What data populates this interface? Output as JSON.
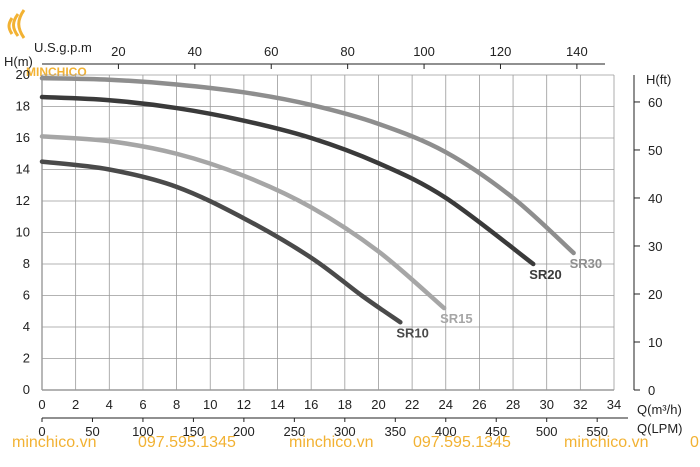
{
  "logo": {
    "text": "MINCHICO"
  },
  "footer": {
    "items": [
      "minchico.vn",
      "097.595.1345",
      "minchico.vn",
      "097.595.1345",
      "minchico.vn",
      "0"
    ]
  },
  "chart_data": {
    "type": "line",
    "left_axis_label": "H(m)",
    "right_axis_label": "H(ft)",
    "top_axis_label": "U.S.g.p.m",
    "bottom_axis_label_1": "Q(m³/h)",
    "bottom_axis_label_2": "Q(LPM)",
    "x_range": [
      0,
      34
    ],
    "y_range": [
      0,
      20
    ],
    "x_ticks": [
      "0",
      "2",
      "4",
      "6",
      "8",
      "10",
      "12",
      "14",
      "16",
      "18",
      "20",
      "22",
      "24",
      "26",
      "28",
      "30",
      "32",
      "34"
    ],
    "y_ticks": [
      "0",
      "2",
      "4",
      "6",
      "8",
      "10",
      "12",
      "14",
      "16",
      "18",
      "20"
    ],
    "lpm_ticks": [
      "0",
      "50",
      "100",
      "150",
      "200",
      "250",
      "300",
      "350",
      "400",
      "450",
      "500",
      "550"
    ],
    "usgpm_ticks": [
      "20",
      "40",
      "60",
      "80",
      "100",
      "120",
      "140"
    ],
    "ft_ticks": [
      "0",
      "10",
      "20",
      "30",
      "40",
      "50",
      "60"
    ],
    "grid": true,
    "series": [
      {
        "name": "SR10",
        "color": "#4a4a4a",
        "points": [
          [
            0,
            14.5
          ],
          [
            4,
            14.0
          ],
          [
            8,
            12.9
          ],
          [
            12,
            10.9
          ],
          [
            16,
            8.4
          ],
          [
            19,
            6.0
          ],
          [
            21.3,
            4.3
          ]
        ]
      },
      {
        "name": "SR15",
        "color": "#a6a6a6",
        "points": [
          [
            0,
            16.1
          ],
          [
            4,
            15.8
          ],
          [
            8,
            15.0
          ],
          [
            12,
            13.6
          ],
          [
            16,
            11.6
          ],
          [
            20,
            8.8
          ],
          [
            23.9,
            5.2
          ]
        ]
      },
      {
        "name": "SR20",
        "color": "#3a3a3a",
        "points": [
          [
            0,
            18.6
          ],
          [
            4,
            18.4
          ],
          [
            8,
            17.9
          ],
          [
            12,
            17.1
          ],
          [
            16,
            16.0
          ],
          [
            20,
            14.4
          ],
          [
            24,
            12.2
          ],
          [
            29.2,
            8.0
          ]
        ]
      },
      {
        "name": "SR30",
        "color": "#8e8e8e",
        "points": [
          [
            0,
            19.8
          ],
          [
            4,
            19.7
          ],
          [
            8,
            19.4
          ],
          [
            12,
            18.9
          ],
          [
            16,
            18.1
          ],
          [
            20,
            16.9
          ],
          [
            24,
            15.1
          ],
          [
            28,
            12.2
          ],
          [
            31.6,
            8.7
          ]
        ]
      }
    ]
  }
}
